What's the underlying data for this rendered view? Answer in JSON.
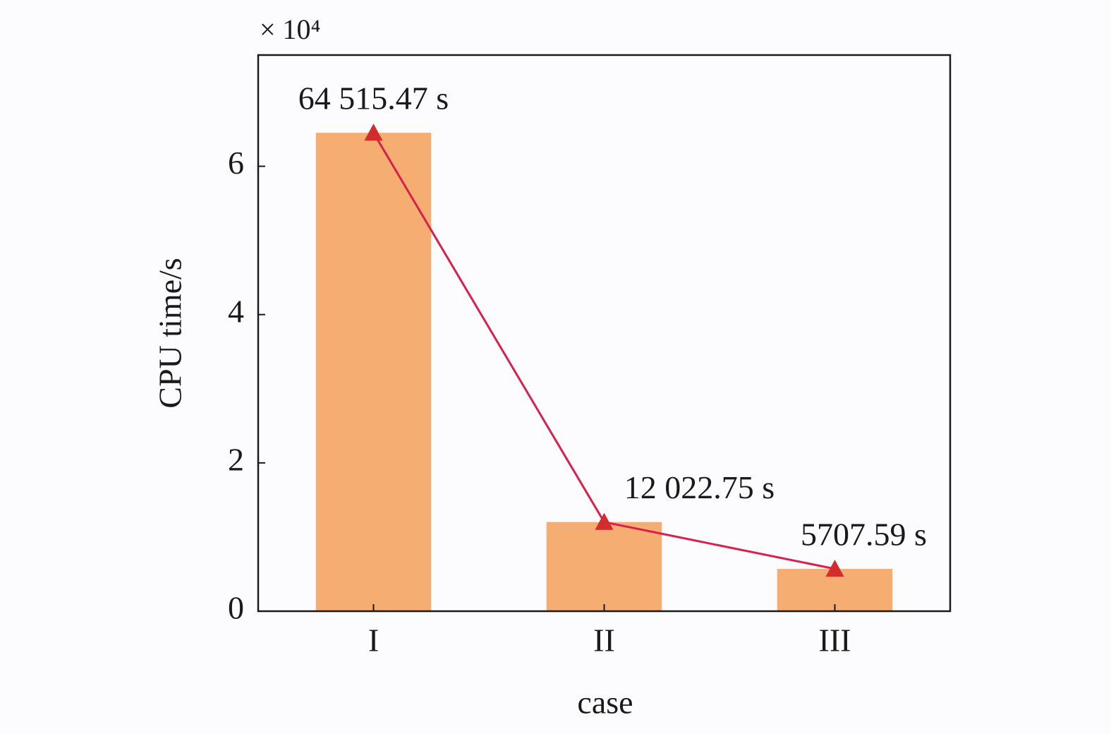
{
  "chart_data": {
    "type": "bar",
    "x_label": "case",
    "y_label": "CPU time/s",
    "y_multiplier": "× 10⁴",
    "categories": [
      "I",
      "II",
      "III"
    ],
    "values": [
      64515.47,
      12022.75,
      5707.59
    ],
    "value_labels": [
      "64 515.47 s",
      "12 022.75 s",
      "5707.59 s"
    ],
    "color": "#f5ad72",
    "line_color": "#d8204a",
    "marker_color": "#d42b2b",
    "ylim": [
      0,
      75000
    ],
    "yticks": [
      {
        "value": 0,
        "label": "0"
      },
      {
        "value": 20000,
        "label": "2"
      },
      {
        "value": 40000,
        "label": "4"
      },
      {
        "value": 60000,
        "label": "6"
      }
    ]
  }
}
